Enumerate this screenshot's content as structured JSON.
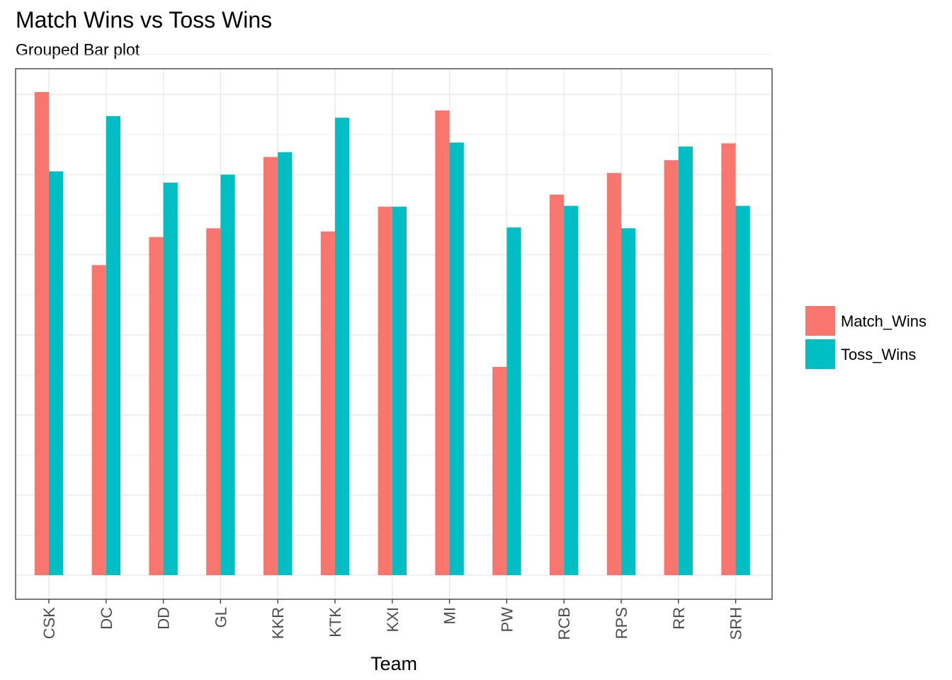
{
  "chart_data": {
    "type": "bar",
    "title": "Match Wins vs Toss Wins",
    "subtitle": "Grouped Bar plot",
    "xlabel": "Team",
    "ylabel": "",
    "categories": [
      "CSK",
      "DC",
      "DD",
      "GL",
      "KKR",
      "KTK",
      "KXI",
      "MI",
      "PW",
      "RCB",
      "RPS",
      "RR",
      "SRH"
    ],
    "series": [
      {
        "name": "Match_Wins",
        "color": "#F8766D",
        "values": [
          0.603,
          0.387,
          0.422,
          0.433,
          0.522,
          0.429,
          0.46,
          0.58,
          0.26,
          0.475,
          0.502,
          0.518,
          0.539
        ]
      },
      {
        "name": "Toss_Wins",
        "color": "#00BFC4",
        "values": [
          0.504,
          0.573,
          0.49,
          0.5,
          0.528,
          0.571,
          0.46,
          0.54,
          0.434,
          0.461,
          0.433,
          0.535,
          0.461
        ]
      }
    ],
    "ylim": [
      -0.015,
      0.648
    ],
    "y_tick_labels_shown": false,
    "legend_position": "right",
    "grid": true,
    "background": "#ffffff",
    "grid_color": "#ebebeb"
  }
}
